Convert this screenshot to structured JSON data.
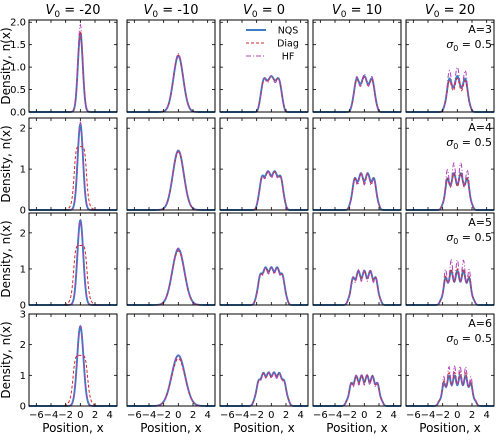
{
  "chart_data": {
    "type": "line",
    "column_titles": [
      "V_0 = -20",
      "V_0 = -10",
      "V_0 = 0",
      "V_0 = 10",
      "V_0 = 20"
    ],
    "column_V0": [
      -20,
      -10,
      0,
      10,
      20
    ],
    "row_A": [
      3,
      4,
      5,
      6
    ],
    "row_annotations": [
      {
        "A_label": "A=3",
        "sigma_label": "σ₀ = 0.5"
      },
      {
        "A_label": "A=4",
        "sigma_label": "σ₀ = 0.5"
      },
      {
        "A_label": "A=5",
        "sigma_label": "σ₀ = 0.5"
      },
      {
        "A_label": "A=6",
        "sigma_label": "σ₀ = 0.5"
      }
    ],
    "ylabel": "Density, n(x)",
    "xlabel": "Position, x",
    "xlim": [
      -7,
      5
    ],
    "xticks": [
      -6,
      -4,
      -2,
      0,
      2,
      4
    ],
    "ylims": [
      [
        0,
        2.05
      ],
      [
        0,
        2.25
      ],
      [
        0,
        2.55
      ],
      [
        0,
        3.0
      ]
    ],
    "yticks": [
      [
        0,
        0.5,
        1.0,
        1.5,
        2.0
      ],
      [
        0,
        1,
        2
      ],
      [
        0,
        1,
        2
      ],
      [
        0,
        1,
        2,
        3
      ]
    ],
    "legend": {
      "location": "upper-right of panel row 1, column 3",
      "entries": [
        {
          "name": "NQS",
          "color": "#3a7fbf",
          "style": "solid"
        },
        {
          "name": "Diag",
          "color": "#d62728",
          "style": "dashed"
        },
        {
          "name": "HF",
          "color": "#b040b8",
          "style": "dashdot"
        }
      ]
    },
    "peak_density_estimates": {
      "NQS": [
        [
          1.75,
          1.25,
          0.8,
          0.8,
          0.8
        ],
        [
          2.1,
          1.45,
          0.95,
          0.9,
          0.9
        ],
        [
          2.35,
          1.55,
          1.05,
          0.95,
          0.95
        ],
        [
          2.6,
          1.65,
          1.1,
          1.0,
          1.0
        ]
      ],
      "Diag": [
        [
          1.8,
          1.27,
          0.8,
          0.78,
          0.75
        ],
        [
          1.55,
          1.42,
          0.93,
          0.88,
          0.9
        ],
        [
          1.65,
          1.5,
          1.03,
          0.95,
          1.0
        ],
        [
          1.65,
          1.55,
          1.08,
          1.0,
          1.1
        ]
      ],
      "HF": [
        [
          1.95,
          1.3,
          0.8,
          0.85,
          1.0
        ],
        [
          2.15,
          1.47,
          0.95,
          0.92,
          1.15
        ],
        [
          2.35,
          1.58,
          1.05,
          0.98,
          1.25
        ],
        [
          2.6,
          1.65,
          1.1,
          1.02,
          1.3
        ]
      ]
    }
  }
}
